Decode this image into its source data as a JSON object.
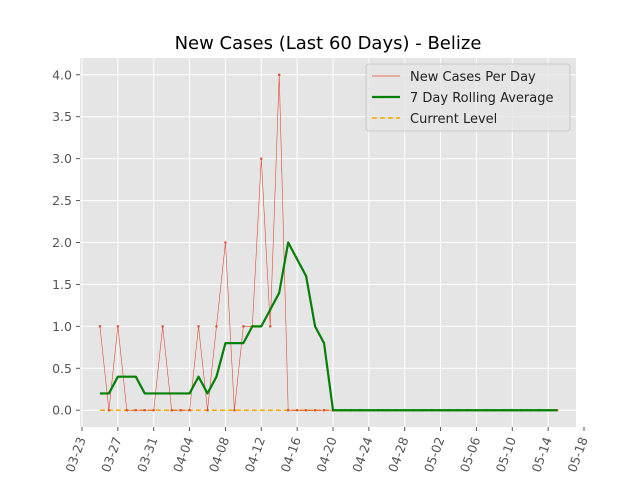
{
  "chart_data": {
    "type": "line",
    "title": "New Cases (Last 60 Days) - Belize",
    "xlabel": "",
    "ylabel": "",
    "x_ticks": [
      "03-23",
      "03-27",
      "03-31",
      "04-04",
      "04-08",
      "04-12",
      "04-16",
      "04-20",
      "04-24",
      "04-28",
      "05-02",
      "05-06",
      "05-10",
      "05-14",
      "05-18"
    ],
    "y_ticks": [
      "0.0",
      "0.5",
      "1.0",
      "1.5",
      "2.0",
      "2.5",
      "3.0",
      "3.5",
      "4.0"
    ],
    "ylim": [
      -0.2,
      4.2
    ],
    "grid": true,
    "legend_position": "top-right",
    "colors": {
      "daily": "#e24a33",
      "rolling": "#008000",
      "current": "#ffa500",
      "plot_background": "#e5e5e5",
      "grid": "#ffffff"
    },
    "series": [
      {
        "name": "New Cases Per Day",
        "x": [
          "03-25",
          "03-26",
          "03-27",
          "03-28",
          "03-29",
          "03-30",
          "03-31",
          "04-01",
          "04-02",
          "04-03",
          "04-04",
          "04-05",
          "04-06",
          "04-07",
          "04-08",
          "04-09",
          "04-10",
          "04-11",
          "04-12",
          "04-13",
          "04-14",
          "04-15",
          "04-16",
          "04-17",
          "04-18",
          "04-19",
          "04-20",
          "04-21",
          "04-22",
          "04-23",
          "04-24",
          "04-25",
          "04-26",
          "04-27",
          "04-28",
          "04-29",
          "04-30",
          "05-01",
          "05-02",
          "05-03",
          "05-04",
          "05-05",
          "05-06",
          "05-07",
          "05-08",
          "05-09",
          "05-10",
          "05-11",
          "05-12",
          "05-13",
          "05-14",
          "05-15"
        ],
        "values": [
          1,
          0,
          1,
          0,
          0,
          0,
          0,
          1,
          0,
          0,
          0,
          1,
          0,
          1,
          2,
          0,
          1,
          1,
          3,
          1,
          4,
          0,
          0,
          0,
          0,
          0,
          0,
          0,
          0,
          0,
          0,
          0,
          0,
          0,
          0,
          0,
          0,
          0,
          0,
          0,
          0,
          0,
          0,
          0,
          0,
          0,
          0,
          0,
          0,
          0,
          0,
          0
        ]
      },
      {
        "name": "7 Day Rolling Average",
        "x": [
          "03-25",
          "03-26",
          "03-27",
          "03-28",
          "03-29",
          "03-30",
          "03-31",
          "04-01",
          "04-02",
          "04-03",
          "04-04",
          "04-05",
          "04-06",
          "04-07",
          "04-08",
          "04-09",
          "04-10",
          "04-11",
          "04-12",
          "04-13",
          "04-14",
          "04-15",
          "04-16",
          "04-17",
          "04-18",
          "04-19",
          "04-20",
          "04-21",
          "04-22",
          "04-23",
          "04-24",
          "04-25",
          "04-26",
          "04-27",
          "04-28",
          "04-29",
          "04-30",
          "05-01",
          "05-02",
          "05-03",
          "05-04",
          "05-05",
          "05-06",
          "05-07",
          "05-08",
          "05-09",
          "05-10",
          "05-11",
          "05-12",
          "05-13",
          "05-14",
          "05-15"
        ],
        "values": [
          0.2,
          0.2,
          0.4,
          0.4,
          0.4,
          0.2,
          0.2,
          0.2,
          0.2,
          0.2,
          0.2,
          0.4,
          0.2,
          0.4,
          0.8,
          0.8,
          0.8,
          1.0,
          1.0,
          1.2,
          1.4,
          2.0,
          1.8,
          1.6,
          1.0,
          0.8,
          0,
          0,
          0,
          0,
          0,
          0,
          0,
          0,
          0,
          0,
          0,
          0,
          0,
          0,
          0,
          0,
          0,
          0,
          0,
          0,
          0,
          0,
          0,
          0,
          0,
          0
        ]
      },
      {
        "name": "Current Level",
        "x": [
          "03-25",
          "05-15"
        ],
        "values": [
          0,
          0
        ]
      }
    ]
  }
}
